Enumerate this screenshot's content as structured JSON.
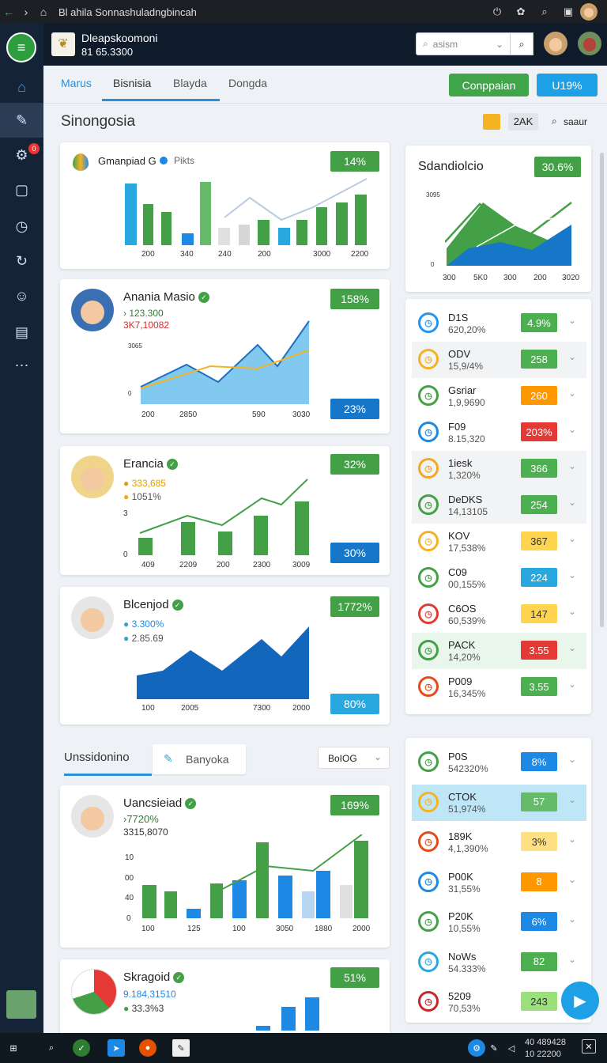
{
  "browser": {
    "title": "Bl ahila Sonnashuladngbincah",
    "back": "←",
    "forward": "›"
  },
  "header": {
    "name": "Dleapskoomoni",
    "number": "81 65.3300",
    "search_placeholder": "asism"
  },
  "sidebar": {
    "badge": "0"
  },
  "tabs": [
    "Marus",
    "Bisnisia",
    "Blayda",
    "Dongda"
  ],
  "buttons": {
    "company": "Conppaian",
    "u": "U19%"
  },
  "toolbar": {
    "title": "Sinongosia",
    "count": "2AK",
    "sort": "saaur"
  },
  "card1": {
    "title": "Gmanpiad G",
    "legend": "Pikts",
    "badge": "14%",
    "axis": [
      "200",
      "340",
      "240",
      "200",
      "3000",
      "2200"
    ]
  },
  "card2": {
    "name": "Anania Masio",
    "v1": "› 123.300",
    "v2": "3K7,10082",
    "badge": "158%",
    "bottom_badge": "23%",
    "axis": [
      "200",
      "2850",
      "590",
      "3030"
    ],
    "ylabels": [
      "3065",
      "0"
    ]
  },
  "card3": {
    "name": "Erancia",
    "v1": "333,685",
    "v2": "1051%",
    "badge": "32%",
    "bottom_badge": "30%",
    "axis": [
      "409",
      "2209",
      "200",
      "2300",
      "3009"
    ],
    "ylabels": [
      "3",
      "0"
    ]
  },
  "card4": {
    "name": "Blcenjod",
    "v1": "3.300%",
    "v2": "2.85.69",
    "badge": "1772%",
    "bottom_badge": "80%",
    "axis": [
      "100",
      "2005",
      "7300",
      "2000"
    ]
  },
  "section2": {
    "title": "Unssidonino",
    "tab": "Banyoka",
    "select": "BoIOG"
  },
  "card5": {
    "name": "Uancsieiad",
    "v1": "›7720%",
    "v2": "3315,8070",
    "badge": "169%",
    "axis": [
      "100",
      "125",
      "100",
      "3050",
      "1880",
      "2000"
    ],
    "ylabels": [
      "10",
      "00",
      "40",
      "0"
    ]
  },
  "card6": {
    "name": "Skragoid",
    "v1": "9.184,31510",
    "v2": "33.3%3",
    "badge": "51%"
  },
  "right_chart": {
    "title": "Sdandiolcio",
    "badge": "30.6%",
    "axis": [
      "300",
      "5K0",
      "300",
      "200",
      "3020"
    ],
    "ylabels": [
      "3095",
      "0"
    ]
  },
  "list1": [
    {
      "name": "D1S",
      "value": "620,20%",
      "badge": "4.9%",
      "color": "#2196f3",
      "bcolor": "#4caf50"
    },
    {
      "name": "ODV",
      "value": "15,9/4%",
      "badge": "258",
      "color": "#f5b324",
      "bcolor": "#4caf50"
    },
    {
      "name": "Gsriar",
      "value": "1,9,9690",
      "badge": "260",
      "color": "#43a047",
      "bcolor": "#ff9800"
    },
    {
      "name": "F09",
      "value": "8.15,320",
      "badge": "203%",
      "color": "#1e88e5",
      "bcolor": "#e53935"
    },
    {
      "name": "1iesk",
      "value": "1,320%",
      "badge": "366",
      "color": "#f5a623",
      "bcolor": "#4caf50"
    },
    {
      "name": "DeDKS",
      "value": "14,13105",
      "badge": "254",
      "color": "#43a047",
      "bcolor": "#4caf50"
    },
    {
      "name": "KOV",
      "value": "17,538%",
      "badge": "367",
      "color": "#f5b324",
      "bcolor": "#ffd54f"
    },
    {
      "name": "C09",
      "value": "00,155%",
      "badge": "224",
      "color": "#43a047",
      "bcolor": "#29a8e0"
    },
    {
      "name": "C6OS",
      "value": "60,539%",
      "badge": "147",
      "color": "#e53935",
      "bcolor": "#ffd54f"
    },
    {
      "name": "PACK",
      "value": "14,20%",
      "badge": "3.55",
      "color": "#43a047",
      "bcolor": "#e53935"
    },
    {
      "name": "P009",
      "value": "16,345%",
      "badge": "3.55",
      "color": "#e64a19",
      "bcolor": "#4caf50"
    }
  ],
  "list2": [
    {
      "name": "P0S",
      "value": "542320%",
      "badge": "8%",
      "color": "#43a047",
      "bcolor": "#1e88e5"
    },
    {
      "name": "CTOK",
      "value": "51,974%",
      "badge": "57",
      "color": "#f5b324",
      "bcolor": "#66bb6a"
    },
    {
      "name": "189K",
      "value": "4,1,390%",
      "badge": "3%",
      "color": "#e64a19",
      "bcolor": "#ffe082"
    },
    {
      "name": "P00K",
      "value": "31,55%",
      "badge": "8",
      "color": "#1e88e5",
      "bcolor": "#ff9800"
    },
    {
      "name": "P20K",
      "value": "10,55%",
      "badge": "6%",
      "color": "#43a047",
      "bcolor": "#1e88e5"
    },
    {
      "name": "NoWs",
      "value": "54.333%",
      "badge": "82",
      "color": "#29a8e0",
      "bcolor": "#4caf50"
    },
    {
      "name": "5209",
      "value": "70,53%",
      "badge": "243",
      "color": "#c62828",
      "bcolor": "#9be07a"
    }
  ],
  "taskbar": {
    "time": "40 489428",
    "date": "10 22200"
  }
}
